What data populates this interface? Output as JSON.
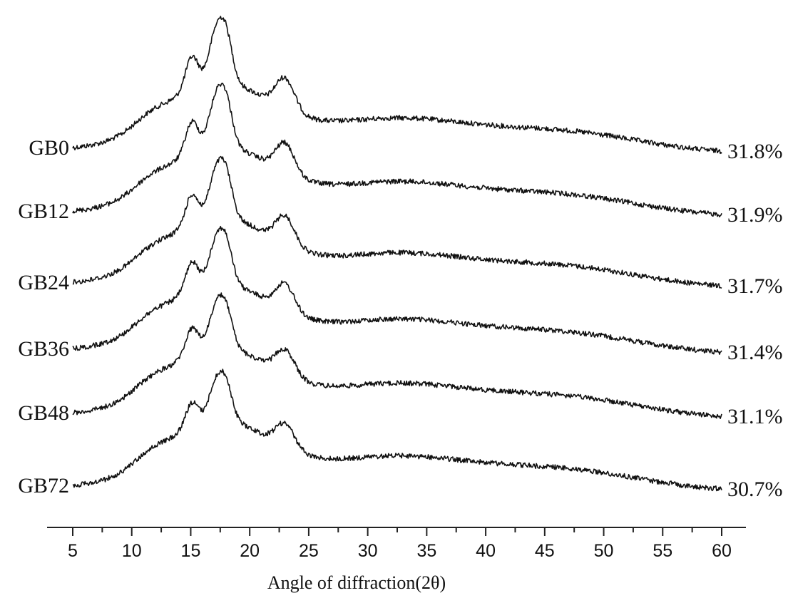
{
  "chart_data": {
    "type": "line",
    "xlabel": "Angle of diffraction(2θ)",
    "xlim": [
      5,
      60
    ],
    "x_ticks": [
      "5",
      "10",
      "15",
      "20",
      "25",
      "30",
      "35",
      "40",
      "45",
      "50",
      "55",
      "60"
    ],
    "series": [
      {
        "name": "GB0",
        "annotation": "31.8%"
      },
      {
        "name": "GB12",
        "annotation": "31.9%"
      },
      {
        "name": "GB24",
        "annotation": "31.7%"
      },
      {
        "name": "GB36",
        "annotation": "31.4%"
      },
      {
        "name": "GB48",
        "annotation": "31.1%"
      },
      {
        "name": "GB72",
        "annotation": "30.7%"
      }
    ],
    "peaks_2theta": [
      15.1,
      17.1,
      18.0,
      23.0
    ],
    "grid": false,
    "legend": "none"
  }
}
